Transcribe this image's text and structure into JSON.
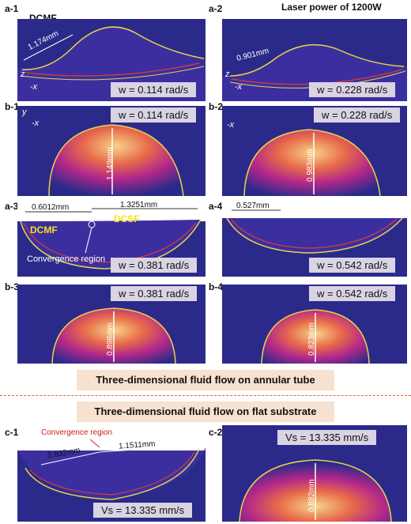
{
  "labels": {
    "a1": "a-1",
    "a2": "a-2",
    "a3": "a-3",
    "a4": "a-4",
    "b1": "b-1",
    "b2": "b-2",
    "b3": "b-3",
    "b4": "b-4",
    "c1": "c-1",
    "c2": "c-2"
  },
  "header": {
    "laser_power": "Laser power of 1200W",
    "dcmf_top": "DCMF"
  },
  "axes": {
    "z": "z",
    "x": "-x",
    "y": "y"
  },
  "omega": {
    "a1": "w = 0.114 rad/s",
    "a2": "w = 0.228 rad/s",
    "b1": "w = 0.114 rad/s",
    "b2": "w = 0.228 rad/s",
    "a3": "w = 0.381 rad/s",
    "a4": "w = 0.542 rad/s",
    "b3": "w = 0.381 rad/s",
    "b4": "w = 0.542 rad/s"
  },
  "velocity": {
    "c1": "Vs = 13.335 mm/s",
    "c2": "Vs = 13.335 mm/s"
  },
  "measurements": {
    "a1": "1.174mm",
    "a2": "0.901mm",
    "b1": "1.149mm",
    "b2": "0.983mm",
    "a3_left": "0.6012mm",
    "a3_right": "1.3251mm",
    "a4": "0.527mm",
    "b3": "0.898mm",
    "b4": "0.823mm",
    "c1_left": "0.832mm",
    "c1_right": "1.1511mm",
    "c2": "0.882mm"
  },
  "regions": {
    "dcmf": "DCMF",
    "dcsf": "DCSF",
    "convergence": "Convergence region"
  },
  "banners": {
    "annular": "Three-dimensional fluid flow on annular tube",
    "flat": "Three-dimensional fluid flow on flat substrate"
  },
  "colors": {
    "panel_bg": "#2b2a8a",
    "banner_bg": "#f7e1d0",
    "box_bg": "#d9d3e3",
    "divider": "#e0603a"
  }
}
